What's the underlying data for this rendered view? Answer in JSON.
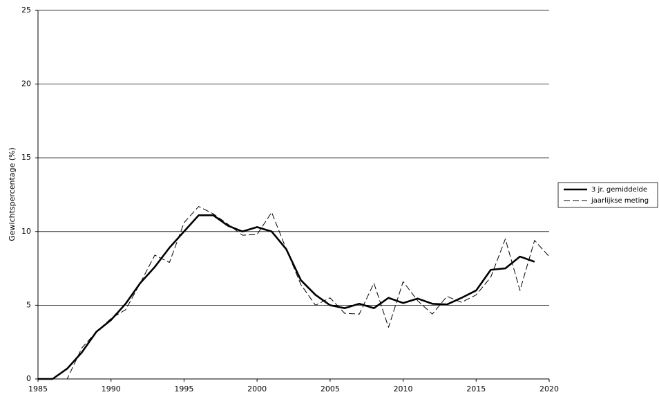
{
  "chart_data": {
    "type": "line",
    "y_label": "Gewichtspercentage (%)",
    "x": [
      1985,
      1986,
      1987,
      1988,
      1989,
      1990,
      1991,
      1992,
      1993,
      1994,
      1995,
      1996,
      1997,
      1998,
      1999,
      2000,
      2001,
      2002,
      2003,
      2004,
      2005,
      2006,
      2007,
      2008,
      2009,
      2010,
      2011,
      2012,
      2013,
      2014,
      2015,
      2016,
      2017,
      2018,
      2019,
      2020
    ],
    "series": [
      {
        "name": "3 jr. gemiddelde",
        "color": "#000000",
        "style": "solid",
        "values": [
          0,
          0,
          0.7,
          1.8,
          3.2,
          4.0,
          5.1,
          6.5,
          7.6,
          8.9,
          10.0,
          11.1,
          11.1,
          10.4,
          10.0,
          10.3,
          10.0,
          8.8,
          6.7,
          5.7,
          5.0,
          4.8,
          5.1,
          4.8,
          5.5,
          5.15,
          5.45,
          5.1,
          5.05,
          5.5,
          6.0,
          7.4,
          7.5,
          8.3,
          7.95,
          null
        ]
      },
      {
        "name": "jaarlijkse meting",
        "color": "#000000",
        "style": "dashed",
        "values": [
          0,
          0,
          0,
          2.1,
          3.2,
          4.1,
          4.7,
          6.5,
          8.4,
          7.9,
          10.6,
          11.7,
          11.2,
          10.5,
          9.75,
          9.8,
          11.3,
          8.8,
          6.4,
          5.0,
          5.5,
          4.45,
          4.4,
          6.5,
          3.5,
          6.6,
          5.3,
          4.4,
          5.6,
          5.2,
          5.7,
          6.9,
          9.5,
          6.0,
          9.4,
          8.3
        ]
      }
    ],
    "xlim": [
      1985,
      2020
    ],
    "xticks": [
      1985,
      1990,
      1995,
      2000,
      2005,
      2010,
      2015,
      2020
    ],
    "ylim": [
      0,
      25
    ],
    "yticks": [
      0,
      5,
      10,
      15,
      20,
      25
    ],
    "grid": true,
    "legend": "right"
  }
}
